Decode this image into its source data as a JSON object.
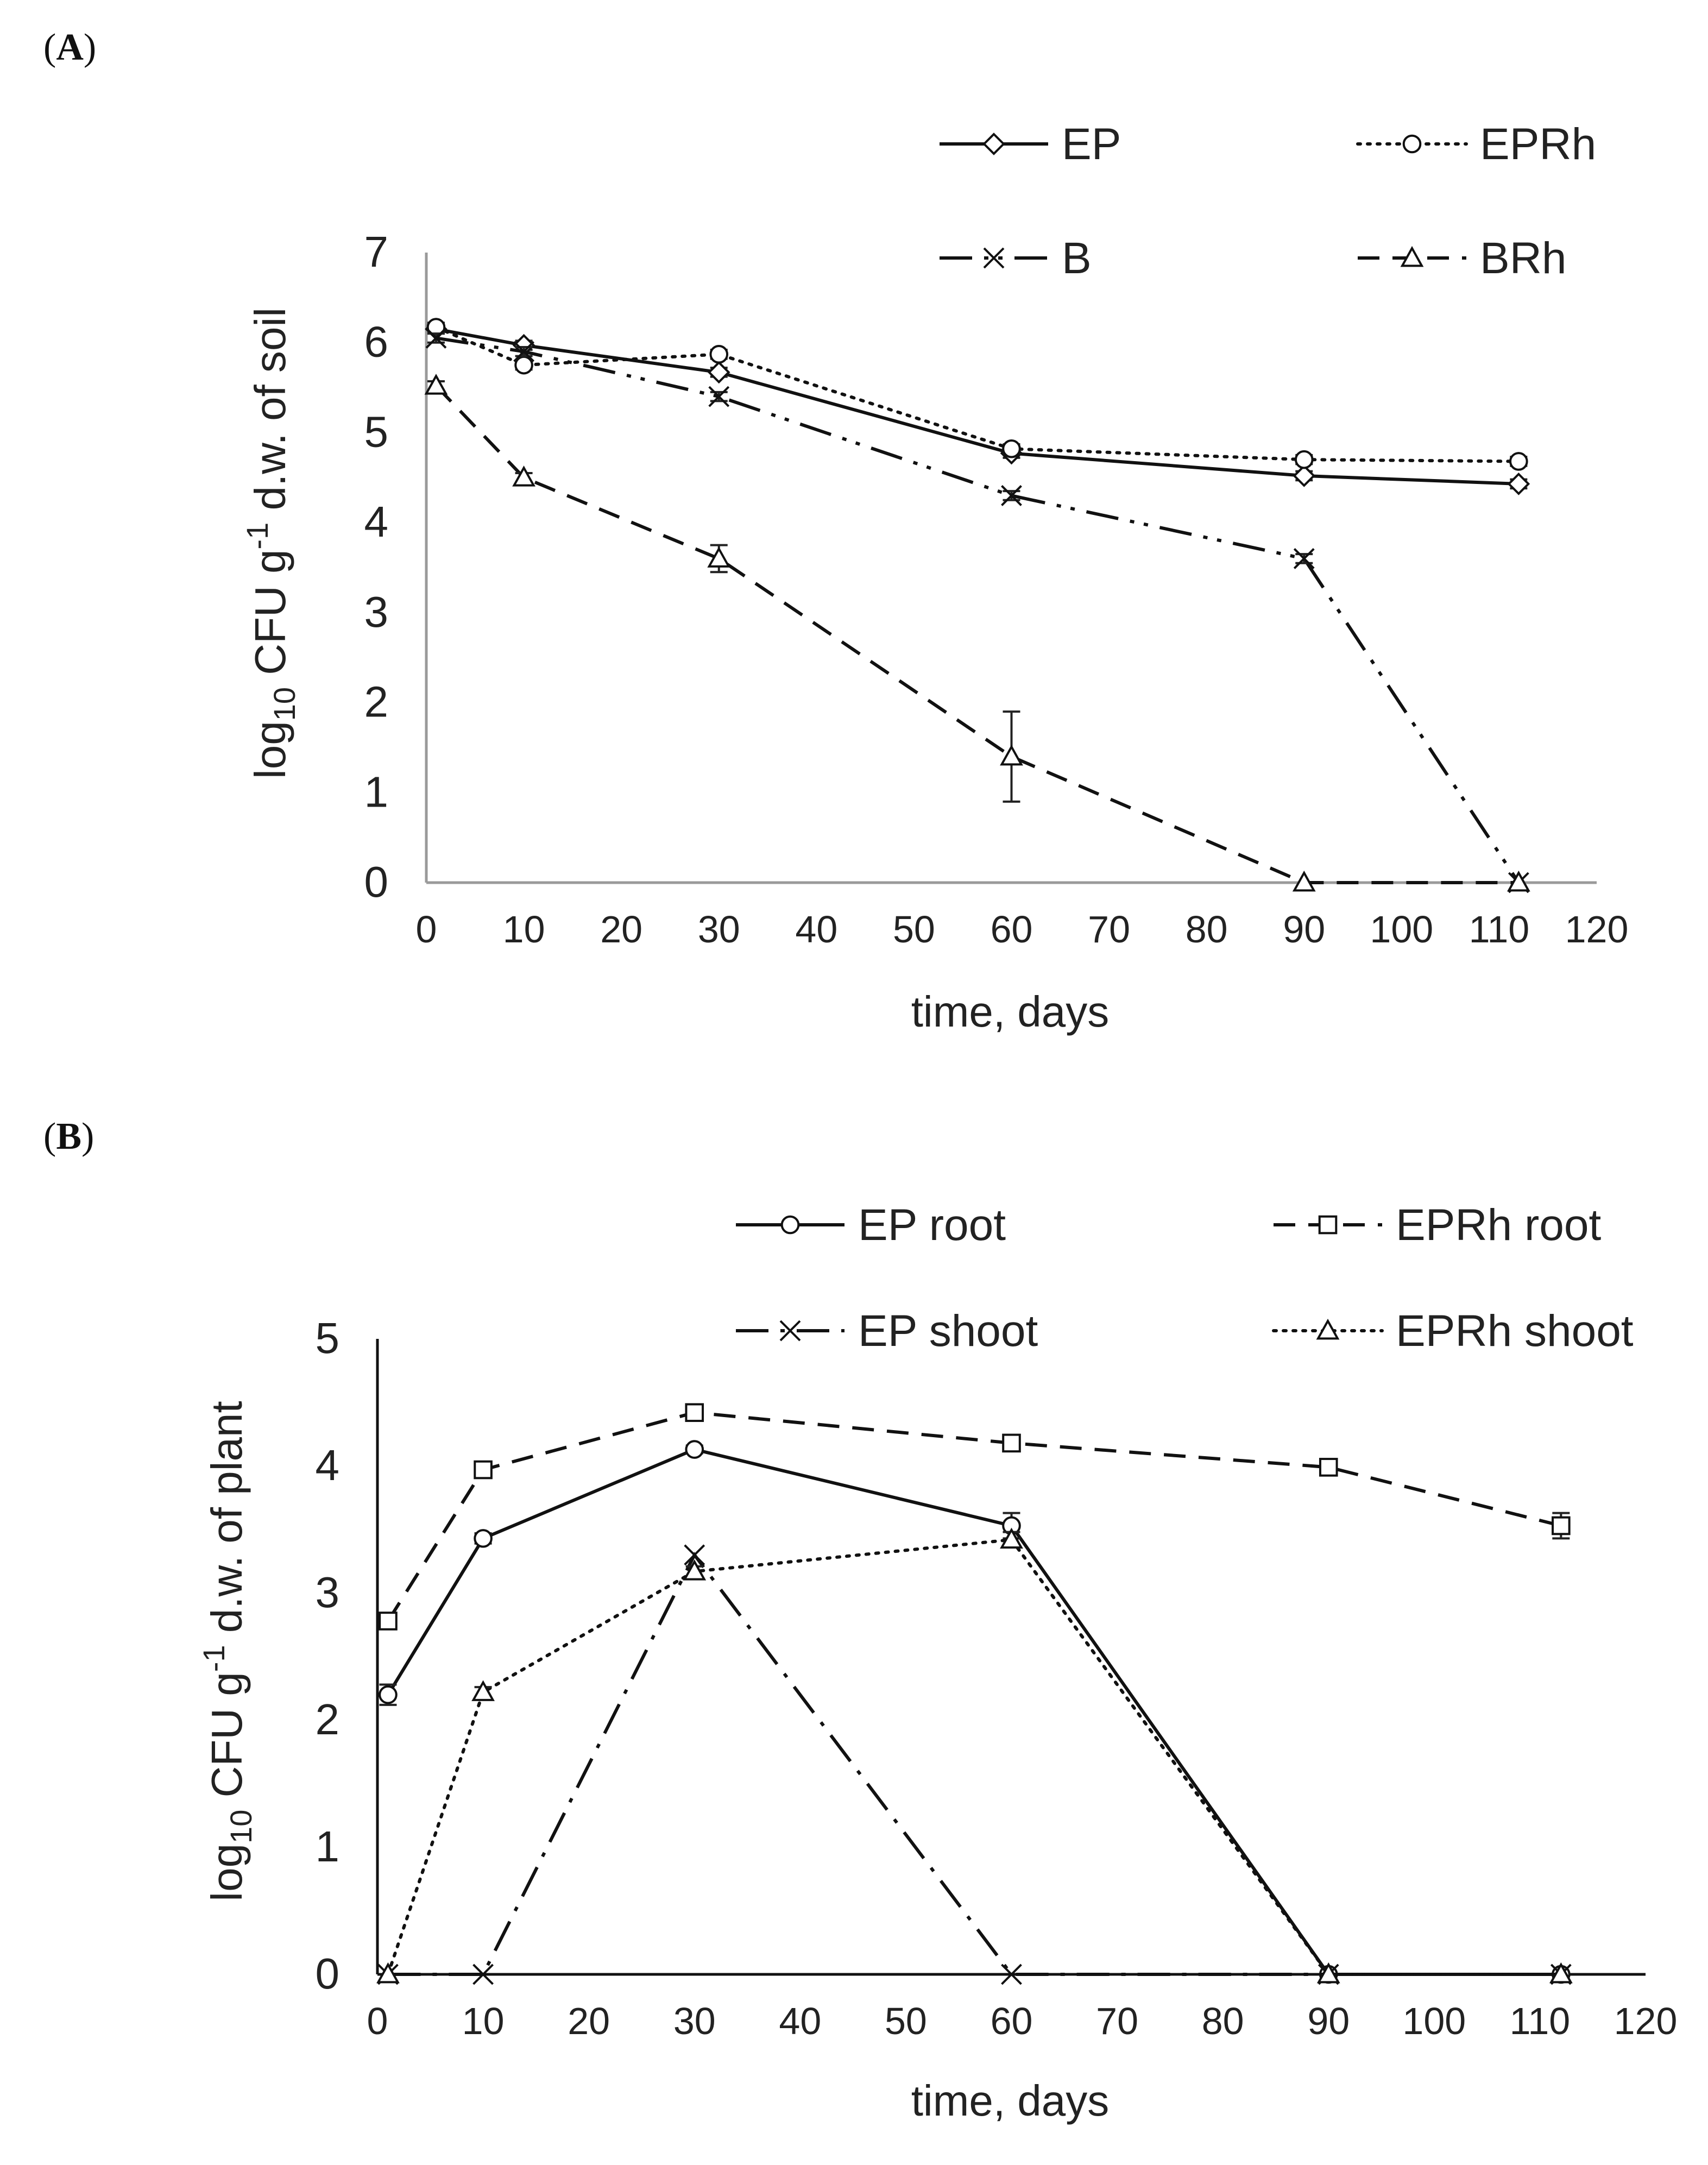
{
  "chart_data": [
    {
      "type": "line",
      "panel_label": "A",
      "xlabel": "time, days",
      "ylabel_base": "log",
      "ylabel_sub": "10",
      "ylabel_mid": " CFU g",
      "ylabel_sup": "-1",
      "ylabel_rest": " d.w. of soil",
      "xlim": [
        0,
        120
      ],
      "ylim": [
        0,
        7
      ],
      "xticks": [
        "0",
        "10",
        "20",
        "30",
        "40",
        "50",
        "60",
        "70",
        "80",
        "90",
        "100",
        "110",
        "120"
      ],
      "yticks": [
        "0",
        "1",
        "2",
        "3",
        "4",
        "5",
        "6",
        "7"
      ],
      "legend_position": "top",
      "x": [
        1,
        10,
        30,
        60,
        90,
        112
      ],
      "series": [
        {
          "name": "EP",
          "marker": "diamond",
          "dash": "solid",
          "values": [
            6.15,
            5.97,
            5.67,
            4.77,
            4.52,
            4.43
          ],
          "errors": [
            0.05,
            0.05,
            0.05,
            0.05,
            0.05,
            0.05
          ]
        },
        {
          "name": "EPRh",
          "marker": "circle",
          "dash": "dotted",
          "values": [
            6.17,
            5.75,
            5.87,
            4.82,
            4.7,
            4.68
          ],
          "errors": [
            0.05,
            0.05,
            0.05,
            0.05,
            0.05,
            0.05
          ]
        },
        {
          "name": "B",
          "marker": "x",
          "dash": "dashdotdot",
          "values": [
            6.05,
            5.9,
            5.4,
            4.3,
            3.6,
            0
          ],
          "errors": [
            0.05,
            0.05,
            0.05,
            0.05,
            0.05,
            0
          ]
        },
        {
          "name": "BRh",
          "marker": "triangle",
          "dash": "dashed",
          "values": [
            5.52,
            4.5,
            3.6,
            1.4,
            0,
            0
          ],
          "errors": [
            0.05,
            0.05,
            0.15,
            0.5,
            0,
            0
          ]
        }
      ]
    },
    {
      "type": "line",
      "panel_label": "B",
      "xlabel": "time, days",
      "ylabel_base": "log",
      "ylabel_sub": "10",
      "ylabel_mid": " CFU g",
      "ylabel_sup": "-1",
      "ylabel_rest": " d.w. of plant",
      "xlim": [
        0,
        120
      ],
      "ylim": [
        0,
        5
      ],
      "xticks": [
        "0",
        "10",
        "20",
        "30",
        "40",
        "50",
        "60",
        "70",
        "80",
        "90",
        "100",
        "110",
        "120"
      ],
      "yticks": [
        "0",
        "1",
        "2",
        "3",
        "4",
        "5"
      ],
      "legend_position": "top",
      "x": [
        1,
        10,
        30,
        60,
        90,
        112
      ],
      "series": [
        {
          "name": "EP root",
          "marker": "circle",
          "dash": "solid",
          "values": [
            2.2,
            3.43,
            4.13,
            3.53,
            0,
            0
          ],
          "errors": [
            0.08,
            0.04,
            0.03,
            0.1,
            0,
            0
          ]
        },
        {
          "name": "EPRh root",
          "marker": "square",
          "dash": "dashed",
          "values": [
            2.78,
            3.97,
            4.42,
            4.18,
            3.99,
            3.53
          ],
          "errors": [
            0.06,
            0.05,
            0.04,
            0.04,
            0.04,
            0.1
          ]
        },
        {
          "name": "EP shoot",
          "marker": "x",
          "dash": "dashdot",
          "values": [
            0,
            0,
            3.3,
            0,
            0,
            0
          ],
          "errors": [
            0,
            0,
            0,
            0,
            0,
            0
          ]
        },
        {
          "name": "EPRh shoot",
          "marker": "triangle",
          "dash": "dotted",
          "values": [
            0,
            2.22,
            3.17,
            3.42,
            0,
            0
          ],
          "errors": [
            0,
            0.04,
            0.04,
            0.06,
            0,
            0
          ]
        }
      ]
    }
  ]
}
